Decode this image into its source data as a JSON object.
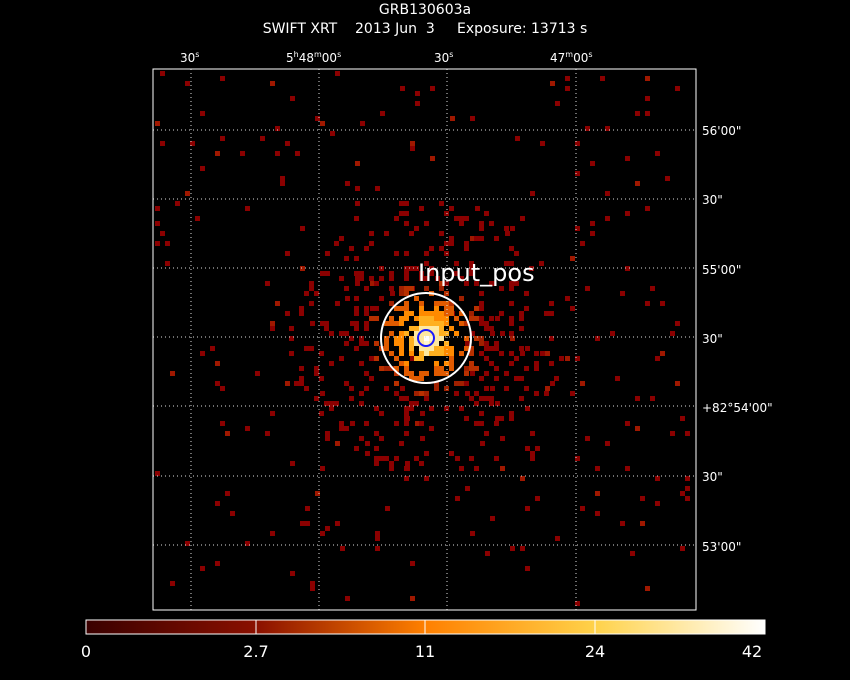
{
  "title": "GRB130603a",
  "subtitle": "SWIFT XRT    2013 Jun  3     Exposure: 13713 s",
  "source_label": "Input_pos",
  "ra_ticks": [
    {
      "main": "30",
      "sup": "s",
      "mid": "",
      "sup2": ""
    },
    {
      "main": "5",
      "sup": "h",
      "mid": "48",
      "sup2": "m",
      "tail": "00",
      "sup3": "s"
    },
    {
      "main": "30",
      "sup": "s",
      "mid": "",
      "sup2": ""
    },
    {
      "main": "47",
      "sup": "m",
      "mid": "00",
      "sup2": "s"
    }
  ],
  "dec_ticks": [
    "56'00\"",
    "30\"",
    "55'00\"",
    "30\"",
    "+82°54'00\"",
    "30\"",
    "53'00\""
  ],
  "colorbar": {
    "ticks": [
      "0",
      "2.7",
      "11",
      "24",
      "42"
    ]
  },
  "colors": {
    "background": "#000000",
    "frame": "#ffffff",
    "grid": "#ffffff",
    "pixel_low": "#8b0000",
    "pixel_high": "#ffffff",
    "source_circle": "#ffffff",
    "inner_circle": "#1a1aff"
  }
}
